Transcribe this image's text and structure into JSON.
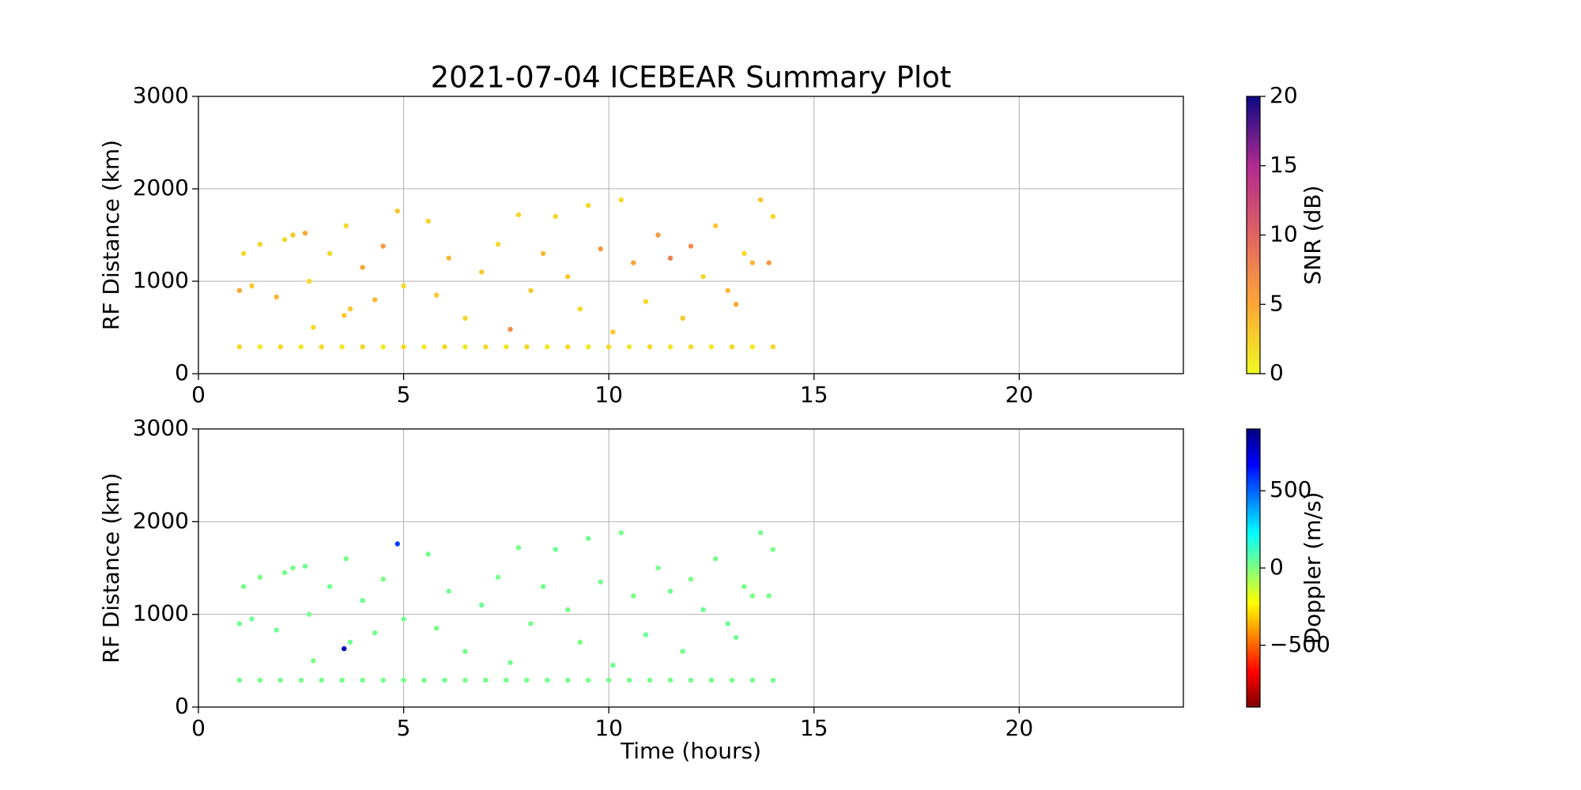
{
  "chart_data": [
    {
      "type": "scatter",
      "title": "2021-07-04 ICEBEAR Summary Plot",
      "ylabel": "RF Distance (km)",
      "xlim": [
        0,
        24
      ],
      "ylim": [
        0,
        3000
      ],
      "xticks": [
        0,
        5,
        10,
        15,
        20
      ],
      "yticks": [
        0,
        1000,
        2000,
        3000
      ],
      "grid": true,
      "x": [
        1,
        1.5,
        2,
        2.5,
        3,
        3.5,
        4,
        4.5,
        5,
        5.5,
        6,
        6.5,
        7,
        7.5,
        8,
        8.5,
        9,
        9.5,
        10,
        10.5,
        11,
        11.5,
        12,
        12.5,
        13,
        13.5,
        14,
        1,
        1.1,
        1.3,
        1.5,
        1.9,
        2.1,
        2.3,
        2.6,
        2.7,
        2.8,
        3.2,
        3.55,
        3.6,
        3.7,
        4,
        4.3,
        4.5,
        4.85,
        5,
        5.6,
        5.8,
        6.1,
        6.5,
        6.9,
        7.3,
        7.6,
        7.8,
        8.1,
        8.4,
        8.7,
        9,
        9.3,
        9.5,
        9.8,
        10.1,
        10.3,
        10.6,
        10.9,
        11.2,
        11.5,
        11.8,
        12,
        12.3,
        12.6,
        12.9,
        13.1,
        13.3,
        13.5,
        13.7,
        13.9,
        14
      ],
      "y": [
        290,
        290,
        290,
        290,
        290,
        290,
        290,
        290,
        290,
        290,
        290,
        290,
        290,
        290,
        290,
        290,
        290,
        290,
        290,
        290,
        290,
        290,
        290,
        290,
        290,
        290,
        290,
        900,
        1300,
        950,
        1400,
        830,
        1450,
        1500,
        1520,
        1000,
        500,
        1300,
        630,
        1600,
        700,
        1150,
        800,
        1380,
        1760,
        950,
        1650,
        850,
        1250,
        600,
        1100,
        1400,
        480,
        1720,
        900,
        1300,
        1700,
        1050,
        700,
        1820,
        1350,
        450,
        1880,
        1200,
        780,
        1500,
        1250,
        600,
        1380,
        1050,
        1600,
        900,
        750,
        1300,
        1200,
        1880,
        1200,
        1700
      ],
      "color_values": [
        2,
        1,
        2,
        1,
        2,
        1,
        2,
        1,
        2,
        1,
        2,
        1,
        2,
        1,
        2,
        1,
        2,
        1,
        2,
        1,
        2,
        1,
        2,
        1,
        2,
        1,
        2,
        5,
        2,
        3,
        2,
        4,
        2,
        3,
        5,
        2,
        2,
        2,
        3,
        2,
        3,
        5,
        4,
        6,
        3,
        2,
        2,
        3,
        4,
        2,
        3,
        2,
        7,
        2,
        3,
        4,
        2,
        3,
        2,
        2,
        6,
        3,
        2,
        5,
        2,
        6,
        8,
        3,
        7,
        2,
        3,
        4,
        5,
        2,
        4,
        3,
        6,
        2
      ],
      "colorbar": {
        "label": "SNR (dB)",
        "lim": [
          0,
          20
        ],
        "ticks": [
          0,
          5,
          10,
          15,
          20
        ],
        "colormap": [
          "#f0f921",
          "#fca636",
          "#e16462",
          "#b12a90",
          "#0d0887"
        ]
      }
    },
    {
      "type": "scatter",
      "ylabel": "RF Distance (km)",
      "xlabel": "Time (hours)",
      "xlim": [
        0,
        24
      ],
      "ylim": [
        0,
        3000
      ],
      "xticks": [
        0,
        5,
        10,
        15,
        20
      ],
      "yticks": [
        0,
        1000,
        2000,
        3000
      ],
      "grid": true,
      "x": [
        1,
        1.5,
        2,
        2.5,
        3,
        3.5,
        4,
        4.5,
        5,
        5.5,
        6,
        6.5,
        7,
        7.5,
        8,
        8.5,
        9,
        9.5,
        10,
        10.5,
        11,
        11.5,
        12,
        12.5,
        13,
        13.5,
        14,
        1,
        1.1,
        1.3,
        1.5,
        1.9,
        2.1,
        2.3,
        2.6,
        2.7,
        2.8,
        3.2,
        3.55,
        3.6,
        3.7,
        4,
        4.3,
        4.5,
        4.85,
        5,
        5.6,
        5.8,
        6.1,
        6.5,
        6.9,
        7.3,
        7.6,
        7.8,
        8.1,
        8.4,
        8.7,
        9,
        9.3,
        9.5,
        9.8,
        10.1,
        10.3,
        10.6,
        10.9,
        11.2,
        11.5,
        11.8,
        12,
        12.3,
        12.6,
        12.9,
        13.1,
        13.3,
        13.5,
        13.7,
        13.9,
        14
      ],
      "y": [
        290,
        290,
        290,
        290,
        290,
        290,
        290,
        290,
        290,
        290,
        290,
        290,
        290,
        290,
        290,
        290,
        290,
        290,
        290,
        290,
        290,
        290,
        290,
        290,
        290,
        290,
        290,
        900,
        1300,
        950,
        1400,
        830,
        1450,
        1500,
        1520,
        1000,
        500,
        1300,
        630,
        1600,
        700,
        1150,
        800,
        1380,
        1760,
        950,
        1650,
        850,
        1250,
        600,
        1100,
        1400,
        480,
        1720,
        900,
        1300,
        1700,
        1050,
        700,
        1820,
        1350,
        450,
        1880,
        1200,
        780,
        1500,
        1250,
        600,
        1380,
        1050,
        1600,
        900,
        750,
        1300,
        1200,
        1880,
        1200,
        1700
      ],
      "color_values": [
        20,
        20,
        20,
        20,
        20,
        20,
        20,
        20,
        20,
        20,
        20,
        20,
        20,
        20,
        20,
        20,
        20,
        20,
        20,
        20,
        20,
        20,
        20,
        20,
        20,
        20,
        20,
        30,
        20,
        40,
        10,
        30,
        20,
        10,
        30,
        20,
        10,
        30,
        820,
        20,
        30,
        40,
        20,
        10,
        560,
        30,
        20,
        10,
        30,
        20,
        40,
        20,
        30,
        10,
        20,
        30,
        40,
        20,
        10,
        30,
        20,
        30,
        20,
        10,
        40,
        20,
        30,
        20,
        10,
        30,
        20,
        40,
        30,
        20,
        10,
        30,
        20,
        10
      ],
      "colorbar": {
        "label": "Doppler (m/s)",
        "lim": [
          -900,
          900
        ],
        "ticks": [
          {
            "value": -500,
            "label": "−500"
          },
          0,
          500
        ],
        "colormap": [
          "#7f0000",
          "#ff0000",
          "#ff7f00",
          "#ffff00",
          "#7fff7f",
          "#00ffff",
          "#007fff",
          "#0000ff",
          "#00007f"
        ]
      }
    }
  ]
}
